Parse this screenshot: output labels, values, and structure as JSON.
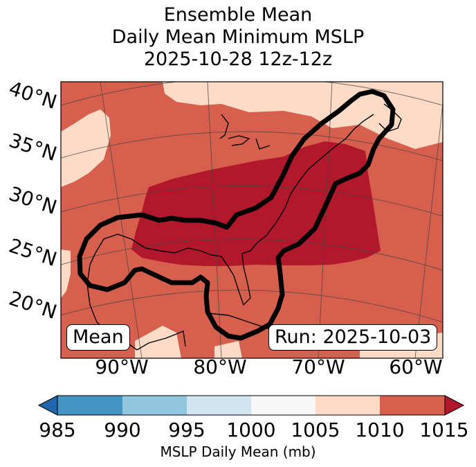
{
  "title": {
    "line1": "Ensemble Mean",
    "line2": "Daily Mean Minimum MSLP",
    "line3": "2025-10-28 12z-12z"
  },
  "badges": {
    "mean": "Mean",
    "run": "Run: 2025-10-03"
  },
  "lat_labels": [
    "40°N",
    "35°N",
    "30°N",
    "25°N",
    "20°N"
  ],
  "lon_labels": [
    "90°W",
    "80°W",
    "70°W",
    "60°W"
  ],
  "colorbar": {
    "label": "MSLP Daily Mean (mb)",
    "ticks": [
      "985",
      "990",
      "995",
      "1000",
      "1005",
      "1010",
      "1015"
    ],
    "bins": [
      {
        "range": "985-990",
        "color": "#4393c3"
      },
      {
        "range": "990-995",
        "color": "#92c5de"
      },
      {
        "range": "995-1000",
        "color": "#d1e5f0"
      },
      {
        "range": "1000-1005",
        "color": "#f7f7f7"
      },
      {
        "range": "1005-1010",
        "color": "#fddbc7"
      },
      {
        "range": "1010-1015",
        "color": "#d6604d"
      }
    ],
    "under_color": "#2166ac",
    "over_color": "#b2182b"
  },
  "field_colors": {
    "low": "#fddbc7",
    "mid": "#d6604d",
    "high": "#b2182b"
  }
}
